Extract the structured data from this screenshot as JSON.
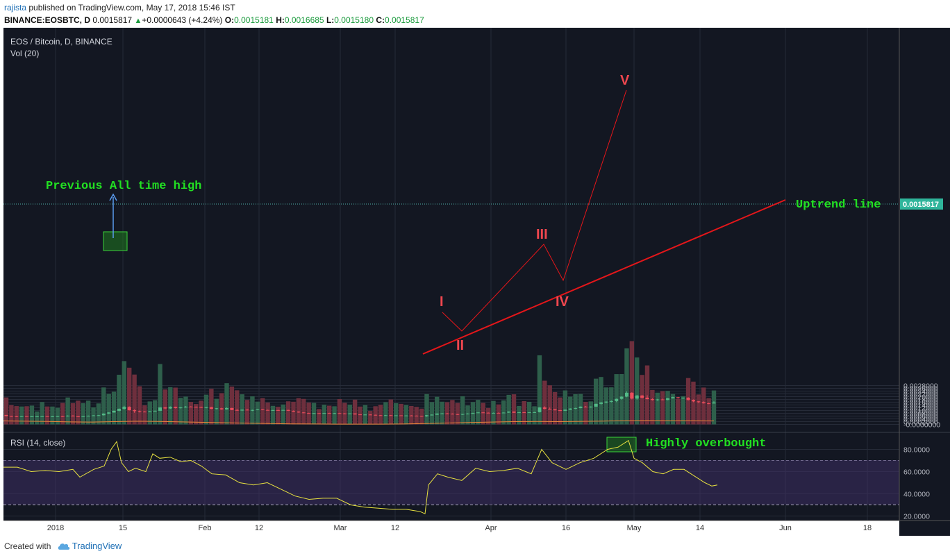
{
  "header": {
    "user": "rajista",
    "published": "published on TradingView.com, May 17, 2018 15:46 IST",
    "symbol": "BINANCE:EOSBTC, D",
    "last": "0.0015817",
    "change": "+0.0000643 (+4.24%)",
    "o_label": "O:",
    "o": "0.0015181",
    "h_label": "H:",
    "h": "0.0016685",
    "l_label": "L:",
    "l": "0.0015180",
    "c_label": "C:",
    "c": "0.0015817"
  },
  "legend": {
    "title": "EOS / Bitcoin, D, BINANCE",
    "vol": "Vol (20)",
    "rsi": "RSI (14, close)"
  },
  "annotations": {
    "ath": "Previous All time high",
    "uptrend": "Uptrend line",
    "overbought": "Highly overbought",
    "waves": [
      "I",
      "II",
      "III",
      "IV",
      "V"
    ]
  },
  "footer": {
    "created": "Created with",
    "brand": "TradingView"
  },
  "colors": {
    "bg": "#131722",
    "up": "#53b987",
    "down": "#eb4d5c",
    "vol_up": "#2e5f4b",
    "vol_down": "#6e2f3d",
    "ma": "#e8853a",
    "rsi": "#e8e240",
    "trend": "#e4161a",
    "wave": "#f0474f",
    "note": "#22e022",
    "ath_arrow": "#5b9cf0"
  },
  "chart_data": {
    "type": "candlestick",
    "title": "EOS / Bitcoin, D, BINANCE",
    "price_axis": {
      "ticks": [
        "0.0028000",
        "0.0026000",
        "0.0024000",
        "0.0022000",
        "0.0020000",
        "0.0018000",
        "0.0016000",
        "0.0014000",
        "0.0012000",
        "0.0010000",
        "0.0008000",
        "0.0006000",
        "0.0004000",
        "0.0002000",
        "-0.0000000"
      ],
      "range": [
        -1e-05,
        0.0028
      ]
    },
    "rsi_axis": {
      "ticks": [
        "80.0000",
        "60.0000",
        "40.0000",
        "20.0000"
      ],
      "bands": [
        70,
        30
      ]
    },
    "time_axis": [
      "2018",
      "15",
      "Feb",
      "12",
      "Mar",
      "12",
      "Apr",
      "16",
      "May",
      "14",
      "Jun",
      "18"
    ],
    "last_price_label": "0.0015817",
    "candles": [
      [
        0.00068,
        0.00068,
        0.00058,
        0.0006
      ],
      [
        0.0006,
        0.00062,
        0.00057,
        0.00058
      ],
      [
        0.00058,
        0.00061,
        0.00054,
        0.00056
      ],
      [
        0.00056,
        0.0006,
        0.00054,
        0.00059
      ],
      [
        0.00059,
        0.0006,
        0.00055,
        0.00057
      ],
      [
        0.00057,
        0.0006,
        0.00055,
        0.00058
      ],
      [
        0.00058,
        0.0006,
        0.00056,
        0.00058
      ],
      [
        0.00058,
        0.00061,
        0.00056,
        0.00059
      ],
      [
        0.00059,
        0.0006,
        0.00056,
        0.00057
      ],
      [
        0.00057,
        0.0006,
        0.00055,
        0.00058
      ],
      [
        0.00058,
        0.00061,
        0.00056,
        0.00059
      ],
      [
        0.00059,
        0.00062,
        0.00057,
        0.00058
      ],
      [
        0.00058,
        0.00065,
        0.00056,
        0.00063
      ],
      [
        0.00063,
        0.00066,
        0.00057,
        0.00058
      ],
      [
        0.00058,
        0.0006,
        0.00052,
        0.00054
      ],
      [
        0.00054,
        0.0006,
        0.00052,
        0.00059
      ],
      [
        0.00059,
        0.00064,
        0.00057,
        0.00062
      ],
      [
        0.00062,
        0.00066,
        0.0006,
        0.00065
      ],
      [
        0.00065,
        0.00068,
        0.00062,
        0.00066
      ],
      [
        0.00066,
        0.0008,
        0.00064,
        0.00078
      ],
      [
        0.00078,
        0.00088,
        0.00074,
        0.00086
      ],
      [
        0.00086,
        0.001,
        0.00084,
        0.00098
      ],
      [
        0.00098,
        0.00115,
        0.00094,
        0.00112
      ],
      [
        0.00112,
        0.00134,
        0.00105,
        0.00126
      ],
      [
        0.00126,
        0.0013,
        0.001,
        0.00102
      ],
      [
        0.00102,
        0.00108,
        0.00084,
        0.00096
      ],
      [
        0.00096,
        0.001,
        0.00086,
        0.00092
      ],
      [
        0.00092,
        0.00095,
        0.00088,
        0.0009
      ],
      [
        0.0009,
        0.00096,
        0.00088,
        0.00094
      ],
      [
        0.00094,
        0.001,
        0.00092,
        0.00098
      ],
      [
        0.00098,
        0.00125,
        0.00096,
        0.00122
      ],
      [
        0.00122,
        0.00126,
        0.0011,
        0.00115
      ],
      [
        0.00115,
        0.0013,
        0.00112,
        0.00126
      ],
      [
        0.00126,
        0.00128,
        0.00115,
        0.00118
      ],
      [
        0.00118,
        0.00125,
        0.00115,
        0.00122
      ],
      [
        0.00122,
        0.00132,
        0.0012,
        0.00128
      ],
      [
        0.00128,
        0.00131,
        0.00124,
        0.00126
      ],
      [
        0.00126,
        0.00129,
        0.00122,
        0.00125
      ],
      [
        0.00125,
        0.00128,
        0.00118,
        0.0012
      ],
      [
        0.0012,
        0.00126,
        0.00116,
        0.00124
      ],
      [
        0.00124,
        0.00126,
        0.0011,
        0.00112
      ],
      [
        0.00112,
        0.00118,
        0.00108,
        0.00116
      ],
      [
        0.00116,
        0.0012,
        0.00105,
        0.00108
      ],
      [
        0.00108,
        0.00122,
        0.00106,
        0.00118
      ],
      [
        0.00118,
        0.0012,
        0.00102,
        0.00104
      ],
      [
        0.00104,
        0.0011,
        0.00098,
        0.001
      ],
      [
        0.001,
        0.00108,
        0.00096,
        0.00106
      ],
      [
        0.00106,
        0.0011,
        0.001,
        0.00102
      ],
      [
        0.00102,
        0.00106,
        0.00096,
        0.00104
      ],
      [
        0.00104,
        0.0011,
        0.00102,
        0.00108
      ],
      [
        0.00108,
        0.0011,
        0.00102,
        0.00104
      ],
      [
        0.00104,
        0.00106,
        0.001,
        0.00102
      ],
      [
        0.00102,
        0.00105,
        0.00098,
        0.00103
      ],
      [
        0.00103,
        0.00106,
        0.001,
        0.00102
      ],
      [
        0.00102,
        0.00106,
        0.001,
        0.00104
      ],
      [
        0.00104,
        0.00106,
        0.00096,
        0.00098
      ],
      [
        0.00098,
        0.001,
        0.0009,
        0.00092
      ],
      [
        0.00092,
        0.00094,
        0.00084,
        0.00086
      ],
      [
        0.00086,
        0.00088,
        0.0008,
        0.00082
      ],
      [
        0.00082,
        0.00084,
        0.00078,
        0.0008
      ],
      [
        0.0008,
        0.00082,
        0.00078,
        0.00081
      ],
      [
        0.00081,
        0.00083,
        0.00079,
        0.0008
      ],
      [
        0.0008,
        0.00084,
        0.00078,
        0.00082
      ],
      [
        0.00082,
        0.00084,
        0.00079,
        0.0008
      ],
      [
        0.0008,
        0.00083,
        0.00078,
        0.00081
      ],
      [
        0.00081,
        0.00084,
        0.00077,
        0.00079
      ],
      [
        0.00079,
        0.00081,
        0.00074,
        0.00076
      ],
      [
        0.00076,
        0.0008,
        0.00074,
        0.00079
      ],
      [
        0.00079,
        0.0008,
        0.0007,
        0.00072
      ],
      [
        0.00072,
        0.00074,
        0.00068,
        0.0007
      ],
      [
        0.0007,
        0.00072,
        0.00068,
        0.00071
      ],
      [
        0.00071,
        0.00072,
        0.00068,
        0.00069
      ],
      [
        0.00069,
        0.0007,
        0.00064,
        0.00066
      ],
      [
        0.00066,
        0.00068,
        0.00064,
        0.00065
      ],
      [
        0.00065,
        0.00068,
        0.00063,
        0.00066
      ],
      [
        0.00066,
        0.00068,
        0.00062,
        0.00064
      ],
      [
        0.00064,
        0.00066,
        0.00062,
        0.00065
      ],
      [
        0.00065,
        0.00066,
        0.00062,
        0.00063
      ],
      [
        0.00063,
        0.00065,
        0.00061,
        0.00064
      ],
      [
        0.00064,
        0.00066,
        0.00062,
        0.00063
      ],
      [
        0.00063,
        0.00064,
        0.0006,
        0.00061
      ],
      [
        0.00061,
        0.00062,
        0.00056,
        0.00058
      ],
      [
        0.00058,
        0.00068,
        0.00055,
        0.00066
      ],
      [
        0.00066,
        0.00072,
        0.00064,
        0.0007
      ],
      [
        0.0007,
        0.0008,
        0.00068,
        0.00078
      ],
      [
        0.00078,
        0.00082,
        0.00074,
        0.00079
      ],
      [
        0.00079,
        0.00082,
        0.00076,
        0.00077
      ],
      [
        0.00077,
        0.00079,
        0.00072,
        0.00074
      ],
      [
        0.00074,
        0.00076,
        0.00068,
        0.0007
      ],
      [
        0.0007,
        0.00076,
        0.00068,
        0.00075
      ],
      [
        0.00075,
        0.0008,
        0.00072,
        0.00078
      ],
      [
        0.00078,
        0.00084,
        0.00076,
        0.00082
      ],
      [
        0.00082,
        0.00088,
        0.0008,
        0.00086
      ],
      [
        0.00086,
        0.00089,
        0.00082,
        0.00084
      ],
      [
        0.00084,
        0.00086,
        0.0008,
        0.00082
      ],
      [
        0.00082,
        0.00085,
        0.0008,
        0.00083
      ],
      [
        0.00083,
        0.00086,
        0.0008,
        0.00082
      ],
      [
        0.00082,
        0.00086,
        0.0008,
        0.00085
      ],
      [
        0.00085,
        0.00094,
        0.00083,
        0.00092
      ],
      [
        0.00092,
        0.00094,
        0.00082,
        0.00084
      ],
      [
        0.00084,
        0.00089,
        0.00082,
        0.00087
      ],
      [
        0.00087,
        0.0009,
        0.00084,
        0.00085
      ],
      [
        0.00085,
        0.00088,
        0.00083,
        0.00087
      ],
      [
        0.00087,
        0.0009,
        0.00084,
        0.00088
      ],
      [
        0.00088,
        0.00124,
        0.00086,
        0.00122
      ],
      [
        0.00122,
        0.0013,
        0.00108,
        0.00112
      ],
      [
        0.00112,
        0.00122,
        0.00106,
        0.00108
      ],
      [
        0.00108,
        0.00112,
        0.001,
        0.00102
      ],
      [
        0.00102,
        0.00105,
        0.00096,
        0.00098
      ],
      [
        0.00098,
        0.00108,
        0.00096,
        0.00106
      ],
      [
        0.00106,
        0.00116,
        0.00104,
        0.00114
      ],
      [
        0.00114,
        0.0012,
        0.0011,
        0.00118
      ],
      [
        0.00118,
        0.0013,
        0.00116,
        0.00128
      ],
      [
        0.00128,
        0.00132,
        0.00122,
        0.00124
      ],
      [
        0.00124,
        0.0013,
        0.0012,
        0.00128
      ],
      [
        0.00128,
        0.0015,
        0.00126,
        0.00148
      ],
      [
        0.00148,
        0.00162,
        0.0014,
        0.00158
      ],
      [
        0.00158,
        0.00166,
        0.00152,
        0.00164
      ],
      [
        0.00164,
        0.00172,
        0.00158,
        0.00168
      ],
      [
        0.00168,
        0.00186,
        0.0016,
        0.00184
      ],
      [
        0.00184,
        0.00202,
        0.00178,
        0.002
      ],
      [
        0.002,
        0.00238,
        0.00196,
        0.00228
      ],
      [
        0.00228,
        0.00232,
        0.0018,
        0.00186
      ],
      [
        0.00186,
        0.00212,
        0.00178,
        0.00208
      ],
      [
        0.00208,
        0.00212,
        0.00186,
        0.00192
      ],
      [
        0.00192,
        0.0021,
        0.0018,
        0.00182
      ],
      [
        0.00182,
        0.00188,
        0.00172,
        0.00176
      ],
      [
        0.00176,
        0.00184,
        0.0017,
        0.0018
      ],
      [
        0.0018,
        0.00186,
        0.00174,
        0.00176
      ],
      [
        0.00176,
        0.0019,
        0.00174,
        0.00188
      ],
      [
        0.00188,
        0.002,
        0.00186,
        0.00196
      ],
      [
        0.00196,
        0.00198,
        0.00186,
        0.0019
      ],
      [
        0.0019,
        0.00194,
        0.00184,
        0.00192
      ],
      [
        0.00192,
        0.00196,
        0.00172,
        0.00176
      ],
      [
        0.00176,
        0.0018,
        0.0016,
        0.00166
      ],
      [
        0.00166,
        0.00168,
        0.00154,
        0.0016
      ],
      [
        0.0016,
        0.00166,
        0.0015,
        0.00152
      ],
      [
        0.00152,
        0.00156,
        0.00146,
        0.00151
      ],
      [
        0.00151,
        0.00167,
        0.0015,
        0.00158
      ]
    ],
    "volume_ma": [
      0.00025,
      0.00023,
      0.00021,
      0.00018,
      0.00017,
      0.0002,
      0.00023,
      0.00021,
      0.00018,
      0.00015,
      0.00012,
      9e-05,
      6e-05,
      4e-05,
      3e-05,
      2e-05,
      2e-05,
      2e-05,
      3e-05,
      6e-05,
      0.0001,
      0.00014,
      0.00017,
      0.0002,
      0.00021,
      0.0002,
      0.00022,
      0.00024,
      0.00027,
      0.00028,
      0.00027,
      0.00027,
      0.00025
    ],
    "rsi": [
      [
        0,
        64
      ],
      [
        20,
        64
      ],
      [
        40,
        60
      ],
      [
        60,
        61
      ],
      [
        80,
        60
      ],
      [
        100,
        62
      ],
      [
        110,
        55
      ],
      [
        130,
        62
      ],
      [
        145,
        65
      ],
      [
        155,
        80
      ],
      [
        163,
        87
      ],
      [
        170,
        68
      ],
      [
        180,
        60
      ],
      [
        190,
        63
      ],
      [
        205,
        60
      ],
      [
        215,
        76
      ],
      [
        225,
        72
      ],
      [
        240,
        73
      ],
      [
        255,
        69
      ],
      [
        270,
        70
      ],
      [
        285,
        65
      ],
      [
        300,
        58
      ],
      [
        320,
        57
      ],
      [
        340,
        50
      ],
      [
        360,
        48
      ],
      [
        380,
        50
      ],
      [
        400,
        44
      ],
      [
        420,
        38
      ],
      [
        440,
        35
      ],
      [
        460,
        36
      ],
      [
        480,
        36
      ],
      [
        500,
        30
      ],
      [
        520,
        28
      ],
      [
        540,
        27
      ],
      [
        560,
        26
      ],
      [
        580,
        26
      ],
      [
        600,
        24
      ],
      [
        607,
        22
      ],
      [
        612,
        48
      ],
      [
        625,
        58
      ],
      [
        640,
        55
      ],
      [
        660,
        52
      ],
      [
        680,
        63
      ],
      [
        700,
        60
      ],
      [
        720,
        61
      ],
      [
        740,
        63
      ],
      [
        760,
        58
      ],
      [
        775,
        80
      ],
      [
        790,
        68
      ],
      [
        810,
        62
      ],
      [
        830,
        68
      ],
      [
        850,
        72
      ],
      [
        870,
        80
      ],
      [
        885,
        82
      ],
      [
        900,
        88
      ],
      [
        908,
        72
      ],
      [
        920,
        68
      ],
      [
        935,
        60
      ],
      [
        950,
        58
      ],
      [
        965,
        62
      ],
      [
        980,
        62
      ],
      [
        995,
        56
      ],
      [
        1010,
        50
      ],
      [
        1020,
        47
      ],
      [
        1028,
        48
      ]
    ]
  }
}
